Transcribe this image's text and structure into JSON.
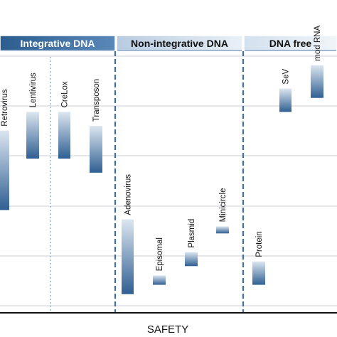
{
  "chart_data": {
    "type": "bar",
    "title": "",
    "xlabel": "SAFETY",
    "ylabel": "",
    "grid": true,
    "sections": [
      {
        "label": "Integrative DNA",
        "style": "dark",
        "color": "#3f6f9f"
      },
      {
        "label": "Non-integrative DNA",
        "style": "light",
        "color": "#cfdcea"
      },
      {
        "label": "DNA free",
        "style": "light",
        "color": "#dfe8f1"
      }
    ],
    "categories": [
      "Retrovirus",
      "Lentivirus",
      "CreLox",
      "Transposon",
      "Adenovirus",
      "Episomal",
      "Plasmid",
      "Minicircle",
      "Protein",
      "SeV",
      "mod RNA"
    ],
    "section_of_category": [
      0,
      0,
      0,
      0,
      1,
      1,
      1,
      1,
      2,
      2,
      2
    ],
    "ranges": [
      {
        "category": "Retrovirus",
        "low": 2.2,
        "high": 3.9
      },
      {
        "category": "Lentivirus",
        "low": 3.3,
        "high": 4.3
      },
      {
        "category": "CreLox",
        "low": 3.3,
        "high": 4.3
      },
      {
        "category": "Transposon",
        "low": 3.0,
        "high": 4.0
      },
      {
        "category": "Adenovirus",
        "low": 0.4,
        "high": 2.0
      },
      {
        "category": "Episomal",
        "low": 0.6,
        "high": 0.8
      },
      {
        "category": "Plasmid",
        "low": 1.0,
        "high": 1.3
      },
      {
        "category": "Minicircle",
        "low": 1.7,
        "high": 1.85
      },
      {
        "category": "Protein",
        "low": 0.6,
        "high": 1.1
      },
      {
        "category": "SeV",
        "low": 4.3,
        "high": 4.8
      },
      {
        "category": "mod RNA",
        "low": 4.6,
        "high": 5.3
      }
    ],
    "ylim": [
      0,
      5.6
    ]
  }
}
